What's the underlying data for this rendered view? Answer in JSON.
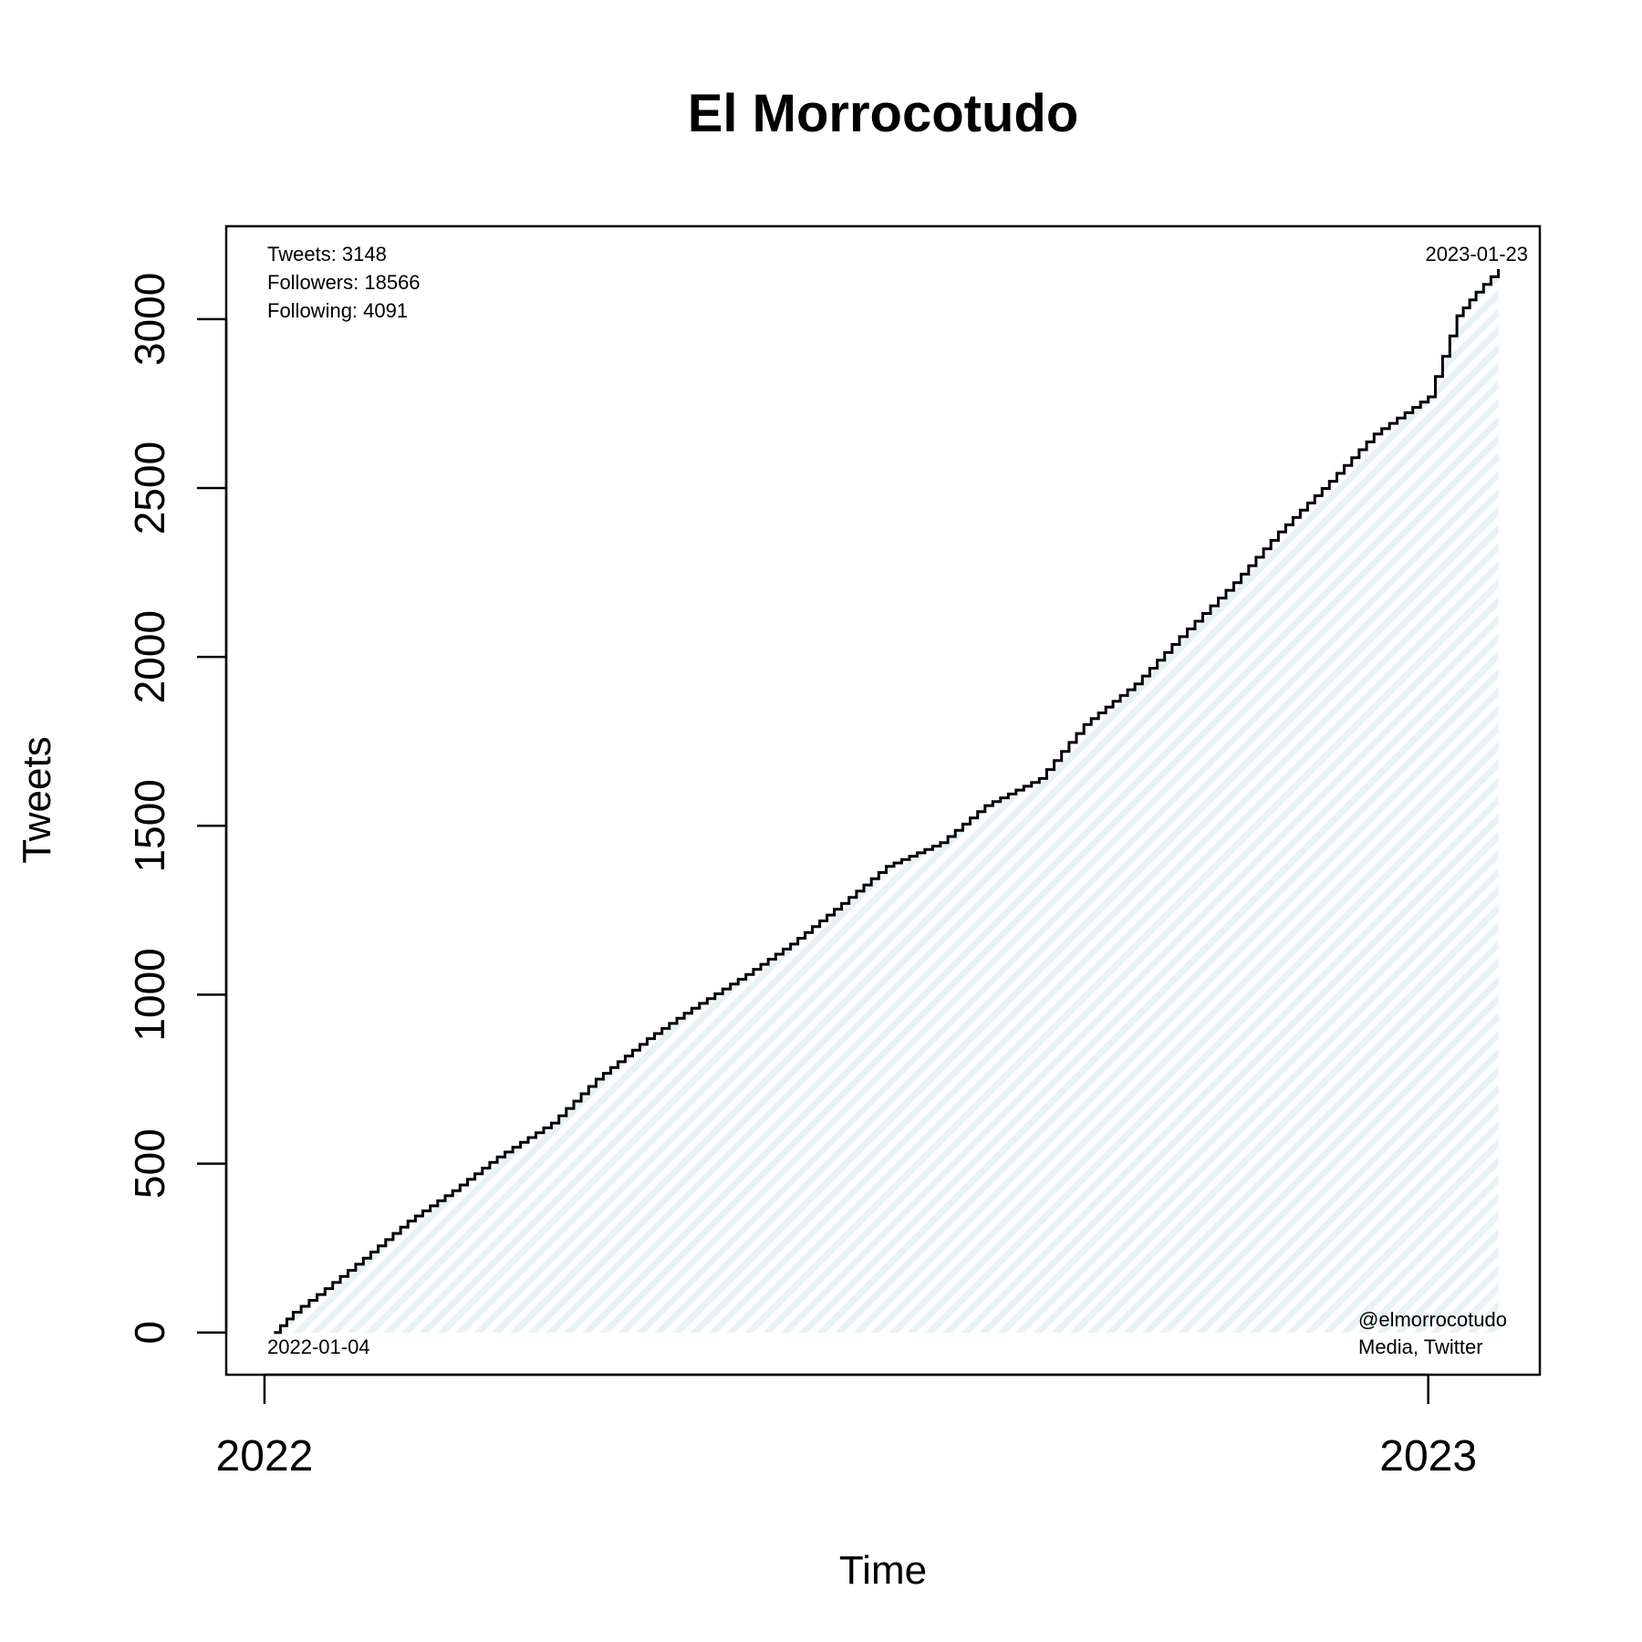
{
  "chart_data": {
    "type": "line",
    "title": "El Morrocotudo",
    "xlabel": "Time",
    "ylabel": "Tweets",
    "x_ticks": [
      {
        "date": "2022-01-01",
        "label": "2022"
      },
      {
        "date": "2023-01-01",
        "label": "2023"
      }
    ],
    "y_ticks": [
      0,
      500,
      1000,
      1500,
      2000,
      2500,
      3000
    ],
    "xlim": [
      "2021-12-20",
      "2023-02-05"
    ],
    "ylim": [
      -125,
      3275
    ],
    "grid": false,
    "fill_color": "#e8f2f5",
    "line_color": "#000000",
    "series": [
      {
        "x": [
          "2022-01-04",
          "2022-01-10",
          "2022-01-20",
          "2022-02-01",
          "2022-02-15",
          "2022-03-01",
          "2022-03-15",
          "2022-04-01",
          "2022-04-15",
          "2022-05-01",
          "2022-05-15",
          "2022-06-01",
          "2022-06-15",
          "2022-07-01",
          "2022-07-15",
          "2022-08-01",
          "2022-08-15",
          "2022-09-01",
          "2022-09-15",
          "2022-10-01",
          "2022-10-15",
          "2022-11-01",
          "2022-11-15",
          "2022-12-01",
          "2022-12-15",
          "2023-01-01",
          "2023-01-10",
          "2023-01-16",
          "2023-01-23"
        ],
        "y": [
          0,
          60,
          130,
          220,
          330,
          420,
          520,
          620,
          750,
          870,
          960,
          1060,
          1150,
          1270,
          1380,
          1450,
          1560,
          1640,
          1800,
          1920,
          2060,
          2220,
          2370,
          2520,
          2660,
          2770,
          3010,
          3080,
          3148
        ]
      }
    ]
  },
  "stats": {
    "tweets": "Tweets: 3148",
    "followers": "Followers: 18566",
    "following": "Following: 4091"
  },
  "dates": {
    "start": "2022-01-04",
    "end": "2023-01-23"
  },
  "credits": {
    "handle": "@elmorrocotudo",
    "source": "Media, Twitter"
  }
}
